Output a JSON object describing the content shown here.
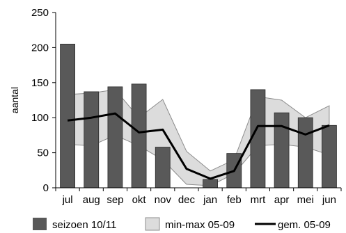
{
  "chart_data": {
    "type": "bar",
    "categories": [
      "jul",
      "aug",
      "sep",
      "okt",
      "nov",
      "dec",
      "jan",
      "feb",
      "mrt",
      "apr",
      "mei",
      "jun"
    ],
    "ylabel": "aantal",
    "ylim": [
      0,
      250
    ],
    "yticks": [
      0,
      50,
      100,
      150,
      200,
      250
    ],
    "grid": false,
    "legend_position": "bottom",
    "series": [
      {
        "name": "seizoen 10/11",
        "kind": "bar",
        "color": "#595959",
        "values": [
          205,
          137,
          144,
          148,
          58,
          null,
          12,
          49,
          140,
          107,
          100,
          89
        ]
      },
      {
        "name": "min-max 05-09",
        "kind": "range-band",
        "color": "#dcdcdc",
        "min": [
          62,
          60,
          75,
          60,
          40,
          5,
          3,
          20,
          60,
          62,
          58,
          47
        ],
        "max": [
          133,
          135,
          140,
          100,
          126,
          52,
          24,
          40,
          130,
          125,
          100,
          117
        ]
      },
      {
        "name": "gem. 05-09",
        "kind": "line",
        "color": "#000000",
        "values": [
          96,
          100,
          106,
          79,
          83,
          27,
          13,
          24,
          88,
          88,
          76,
          89
        ]
      }
    ]
  }
}
